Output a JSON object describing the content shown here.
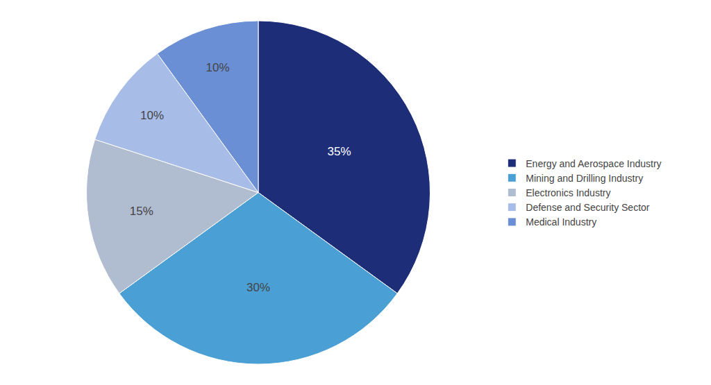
{
  "chart_data": {
    "type": "pie",
    "categories": [
      "Energy and Aerospace Industry",
      "Mining and Drilling Industry",
      "Electronics Industry",
      "Defense and Security Sector",
      "Medical Industry"
    ],
    "values": [
      35,
      30,
      15,
      10,
      10
    ],
    "value_labels": [
      "35%",
      "30%",
      "15%",
      "10%",
      "10%"
    ],
    "colors": [
      "#1e2d78",
      "#4a9fd4",
      "#b0bcd0",
      "#a8bce8",
      "#6b8fd4"
    ],
    "data_labels": true,
    "legend": "right"
  }
}
